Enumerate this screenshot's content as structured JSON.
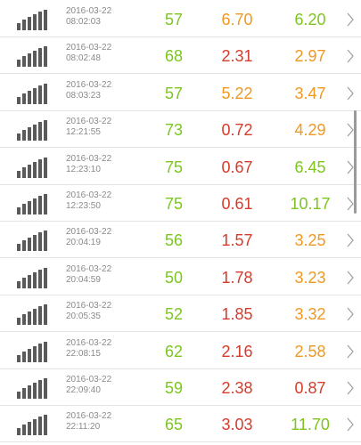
{
  "colors": {
    "green": "#7cc61e",
    "red": "#d63b2b",
    "orange": "#f0981f"
  },
  "rows": [
    {
      "date": "2016-03-22",
      "time": "08:02:03",
      "v1": "57",
      "c1": "green",
      "v2": "6.70",
      "c2": "orange",
      "v3": "6.20",
      "c3": "green"
    },
    {
      "date": "2016-03-22",
      "time": "08:02:48",
      "v1": "68",
      "c1": "green",
      "v2": "2.31",
      "c2": "red",
      "v3": "2.97",
      "c3": "orange"
    },
    {
      "date": "2016-03-22",
      "time": "08:03:23",
      "v1": "57",
      "c1": "green",
      "v2": "5.22",
      "c2": "orange",
      "v3": "3.47",
      "c3": "orange"
    },
    {
      "date": "2016-03-22",
      "time": "12:21:55",
      "v1": "73",
      "c1": "green",
      "v2": "0.72",
      "c2": "red",
      "v3": "4.29",
      "c3": "orange"
    },
    {
      "date": "2016-03-22",
      "time": "12:23:10",
      "v1": "75",
      "c1": "green",
      "v2": "0.67",
      "c2": "red",
      "v3": "6.45",
      "c3": "green"
    },
    {
      "date": "2016-03-22",
      "time": "12:23:50",
      "v1": "75",
      "c1": "green",
      "v2": "0.61",
      "c2": "red",
      "v3": "10.17",
      "c3": "green"
    },
    {
      "date": "2016-03-22",
      "time": "20:04:19",
      "v1": "56",
      "c1": "green",
      "v2": "1.57",
      "c2": "red",
      "v3": "3.25",
      "c3": "orange"
    },
    {
      "date": "2016-03-22",
      "time": "20:04:59",
      "v1": "50",
      "c1": "green",
      "v2": "1.78",
      "c2": "red",
      "v3": "3.23",
      "c3": "orange"
    },
    {
      "date": "2016-03-22",
      "time": "20:05:35",
      "v1": "52",
      "c1": "green",
      "v2": "1.85",
      "c2": "red",
      "v3": "3.32",
      "c3": "orange"
    },
    {
      "date": "2016-03-22",
      "time": "22:08:15",
      "v1": "62",
      "c1": "green",
      "v2": "2.16",
      "c2": "red",
      "v3": "2.58",
      "c3": "orange"
    },
    {
      "date": "2016-03-22",
      "time": "22:09:40",
      "v1": "59",
      "c1": "green",
      "v2": "2.38",
      "c2": "red",
      "v3": "0.87",
      "c3": "red"
    },
    {
      "date": "2016-03-22",
      "time": "22:11:20",
      "v1": "65",
      "c1": "green",
      "v2": "3.03",
      "c2": "red",
      "v3": "11.70",
      "c3": "green"
    }
  ],
  "icons": {
    "signal": "signal-strength-icon",
    "chevron": "chevron-right-icon"
  }
}
